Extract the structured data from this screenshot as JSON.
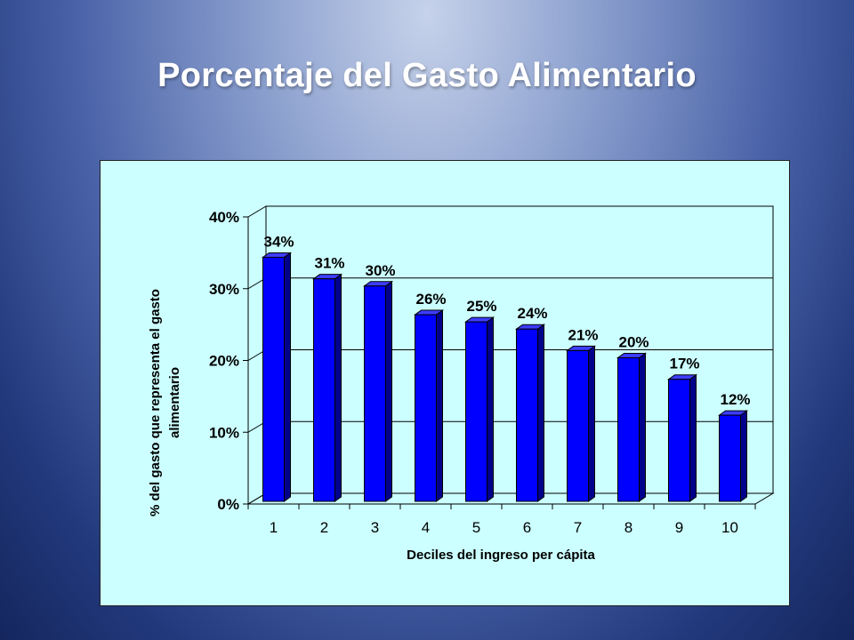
{
  "slide": {
    "title": "Porcentaje del Gasto Alimentario"
  },
  "chart_data": {
    "type": "bar",
    "style": "3d-column",
    "categories": [
      "1",
      "2",
      "3",
      "4",
      "5",
      "6",
      "7",
      "8",
      "9",
      "10"
    ],
    "values": [
      0.34,
      0.31,
      0.3,
      0.26,
      0.25,
      0.24,
      0.21,
      0.2,
      0.17,
      0.12
    ],
    "data_labels": [
      "34%",
      "31%",
      "30%",
      "26%",
      "25%",
      "24%",
      "21%",
      "20%",
      "17%",
      "12%"
    ],
    "y_ticks": [
      0,
      0.1,
      0.2,
      0.3,
      0.4
    ],
    "y_tick_labels": [
      "0%",
      "10%",
      "20%",
      "30%",
      "40%"
    ],
    "ylim": [
      0,
      0.4
    ],
    "xlabel": "Deciles del ingreso per cápita",
    "ylabel_lines": [
      "% del gasto que representa el gasto",
      "alimentario"
    ],
    "grid": true,
    "legend": "none",
    "colors": {
      "bar_front": "#0000ff",
      "bar_side": "#00008b",
      "bar_top": "#3d3dff",
      "plot_background": "#ccffff",
      "gridline": "#000000"
    }
  }
}
